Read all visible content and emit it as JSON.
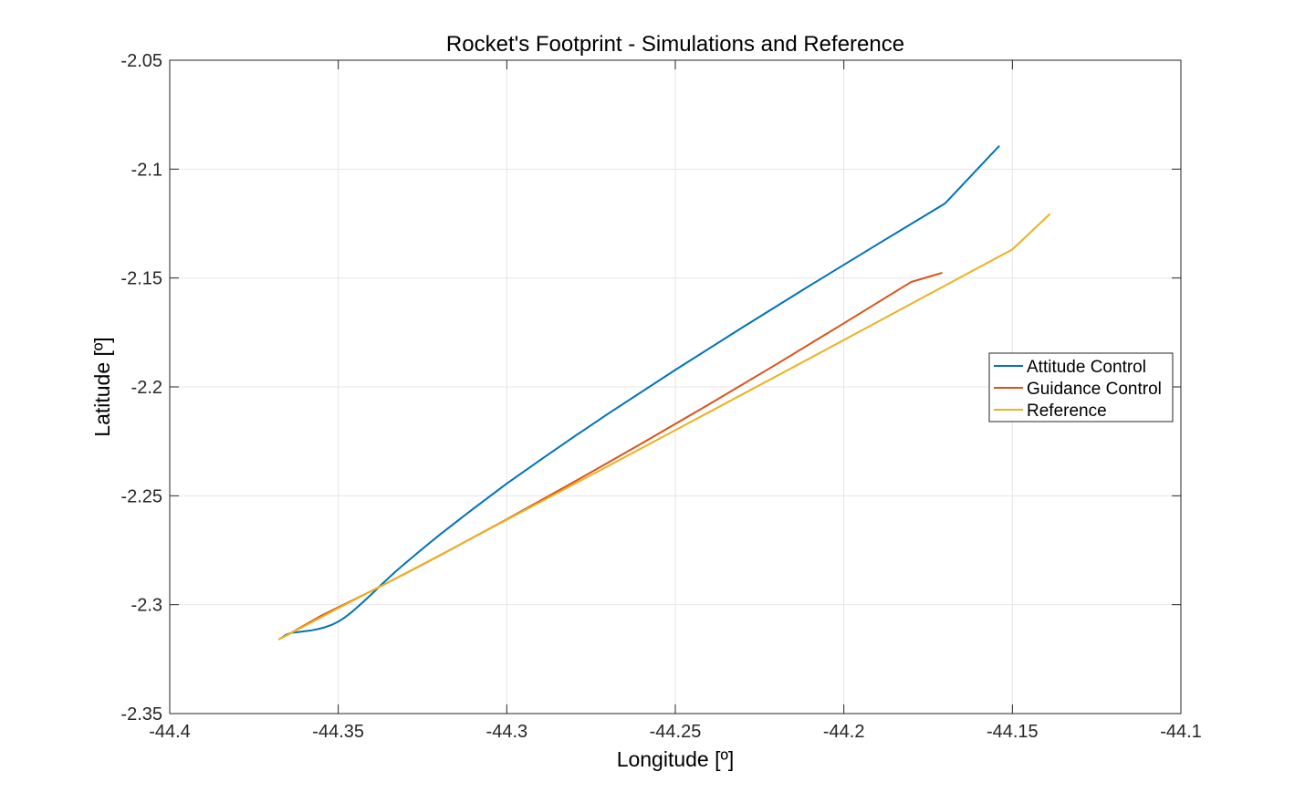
{
  "chart_data": {
    "type": "line",
    "title": "Rocket's Footprint - Simulations and Reference",
    "xlabel": "Longitude [º]",
    "ylabel": "Latitude [º]",
    "xlim": [
      -44.4,
      -44.1
    ],
    "ylim": [
      -2.35,
      -2.05
    ],
    "xticks": [
      -44.4,
      -44.35,
      -44.3,
      -44.25,
      -44.2,
      -44.15,
      -44.1
    ],
    "yticks": [
      -2.35,
      -2.3,
      -2.25,
      -2.2,
      -2.15,
      -2.1,
      -2.05
    ],
    "xtick_labels": [
      "-44.4",
      "-44.35",
      "-44.3",
      "-44.25",
      "-44.2",
      "-44.15",
      "-44.1"
    ],
    "ytick_labels": [
      "-2.35",
      "-2.3",
      "-2.25",
      "-2.2",
      "-2.15",
      "-2.1",
      "-2.05"
    ],
    "grid": true,
    "legend_position": "right",
    "series": [
      {
        "name": "Attitude Control",
        "color": "#0072BD",
        "x": [
          -44.3666,
          -44.3655,
          -44.364,
          -44.362,
          -44.36,
          -44.358,
          -44.356,
          -44.354,
          -44.352,
          -44.35,
          -44.348,
          -44.346,
          -44.343,
          -44.34,
          -44.337,
          -44.333,
          -44.33,
          -44.325,
          -44.32,
          -44.31,
          -44.3,
          -44.29,
          -44.28,
          -44.27,
          -44.25,
          -44.23,
          -44.21,
          -44.19,
          -44.17,
          -44.154
        ],
        "y": [
          -2.315,
          -2.3138,
          -2.313,
          -2.3126,
          -2.3122,
          -2.3118,
          -2.3112,
          -2.3104,
          -2.3093,
          -2.3078,
          -2.3058,
          -2.3034,
          -2.2993,
          -2.295,
          -2.2905,
          -2.2848,
          -2.2808,
          -2.2743,
          -2.268,
          -2.256,
          -2.2444,
          -2.2335,
          -2.2228,
          -2.2124,
          -2.1922,
          -2.1726,
          -2.1534,
          -2.1345,
          -2.1158,
          -2.0895
        ]
      },
      {
        "name": "Guidance Control",
        "color": "#D95319",
        "x": [
          -44.3675,
          -44.365,
          -44.36,
          -44.355,
          -44.35,
          -44.34,
          -44.33,
          -44.32,
          -44.3,
          -44.28,
          -44.26,
          -44.24,
          -44.22,
          -44.2,
          -44.18,
          -44.171
        ],
        "y": [
          -2.3158,
          -2.3138,
          -2.3094,
          -2.305,
          -2.3012,
          -2.2936,
          -2.2856,
          -2.2775,
          -2.2608,
          -2.2436,
          -2.226,
          -2.208,
          -2.1896,
          -2.1708,
          -2.1518,
          -2.1477
        ]
      },
      {
        "name": "Reference",
        "color": "#EDB120",
        "x": [
          -44.3675,
          -44.36,
          -44.35,
          -44.33,
          -44.3,
          -44.27,
          -44.24,
          -44.21,
          -44.18,
          -44.15,
          -44.139
        ],
        "y": [
          -2.3158,
          -2.3098,
          -2.3016,
          -2.2856,
          -2.261,
          -2.2364,
          -2.2116,
          -2.1868,
          -2.1618,
          -2.1369,
          -2.1208
        ]
      }
    ]
  }
}
